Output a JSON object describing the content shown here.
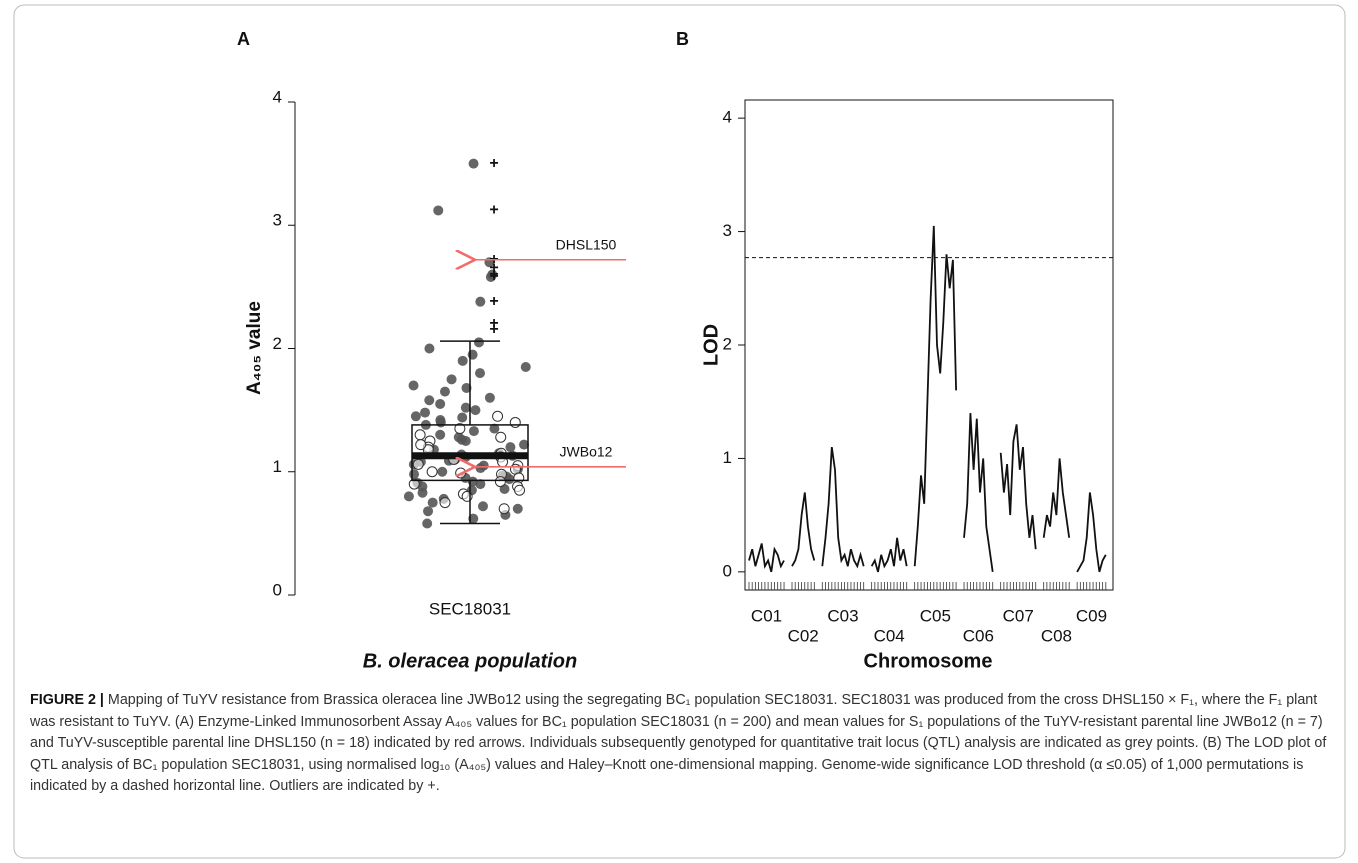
{
  "chart_data": [
    {
      "type": "box",
      "panel_label": "A",
      "ylabel": "A₄₀₅ value",
      "xlabel": "B. oleracea population",
      "categories": [
        "SEC18031"
      ],
      "ylim": [
        0,
        4
      ],
      "yticks": [
        0,
        1,
        2,
        3,
        4
      ],
      "box": {
        "whisker_low": 0.58,
        "q1": 0.93,
        "median": 1.13,
        "q3": 1.38,
        "whisker_high": 2.06
      },
      "outliers": [
        3.5,
        3.12,
        2.72,
        2.65,
        2.6,
        2.58,
        2.38,
        2.2,
        2.15
      ],
      "point_color": "#555555",
      "filled_points": [
        3.5,
        3.12,
        2.7,
        2.6,
        2.58,
        2.38,
        2.05,
        2.0,
        1.95,
        1.9,
        1.85,
        1.8,
        1.75,
        1.7,
        1.68,
        1.65,
        1.6,
        1.58,
        1.55,
        1.52,
        1.5,
        1.48,
        1.45,
        1.42,
        1.4,
        1.38,
        1.35,
        1.33,
        1.3,
        1.28,
        1.25,
        1.22,
        1.2,
        1.18,
        1.15,
        1.14,
        1.12,
        1.1,
        1.08,
        1.06,
        1.05,
        1.03,
        1.02,
        1.0,
        0.98,
        0.97,
        0.95,
        0.94,
        0.92,
        0.9,
        0.88,
        0.86,
        0.85,
        0.83,
        0.8,
        0.78,
        0.75,
        0.72,
        0.7,
        0.68,
        0.65,
        0.62,
        0.58,
        1.13,
        1.11,
        1.09,
        0.96,
        0.91,
        1.26,
        1.44
      ],
      "open_points": [
        1.45,
        1.4,
        1.35,
        1.3,
        1.28,
        1.25,
        1.2,
        1.18,
        1.15,
        1.12,
        1.1,
        1.08,
        1.05,
        1.02,
        1.0,
        0.98,
        0.95,
        0.92,
        0.9,
        0.88,
        0.85,
        0.82,
        0.8,
        0.75,
        0.7,
        1.22,
        1.06,
        0.99
      ],
      "annotations": [
        {
          "text": "DHSL150",
          "value": 2.72,
          "color": "#f26b6b"
        },
        {
          "text": "JWBo12",
          "value": 1.04,
          "color": "#f26b6b"
        }
      ]
    },
    {
      "type": "line",
      "panel_label": "B",
      "ylabel": "LOD",
      "xlabel": "Chromosome",
      "ylim": [
        -0.16,
        4.16
      ],
      "yticks": [
        0,
        1,
        2,
        3,
        4
      ],
      "threshold": 2.77,
      "color": "#111111",
      "series": [
        {
          "name": "C01",
          "values": [
            0.1,
            0.2,
            0.05,
            0.15,
            0.25,
            0.05,
            0.1,
            0.0,
            0.2,
            0.15,
            0.05,
            0.1
          ]
        },
        {
          "name": "C02",
          "values": [
            0.05,
            0.1,
            0.2,
            0.5,
            0.7,
            0.4,
            0.2,
            0.1
          ]
        },
        {
          "name": "C03",
          "values": [
            0.05,
            0.3,
            0.6,
            1.1,
            0.9,
            0.3,
            0.1,
            0.15,
            0.05,
            0.2,
            0.1,
            0.05,
            0.15,
            0.05
          ]
        },
        {
          "name": "C04",
          "values": [
            0.05,
            0.1,
            0.0,
            0.15,
            0.05,
            0.1,
            0.2,
            0.05,
            0.3,
            0.1,
            0.2,
            0.05
          ]
        },
        {
          "name": "C05",
          "values": [
            0.05,
            0.4,
            0.85,
            0.6,
            1.5,
            2.4,
            3.05,
            2.0,
            1.75,
            2.2,
            2.8,
            2.5,
            2.75,
            1.6
          ]
        },
        {
          "name": "C06",
          "values": [
            0.3,
            0.6,
            1.4,
            0.9,
            1.35,
            0.7,
            1.0,
            0.4,
            0.2,
            0.0
          ]
        },
        {
          "name": "C07",
          "values": [
            1.05,
            0.7,
            0.95,
            0.5,
            1.15,
            1.3,
            0.9,
            1.1,
            0.6,
            0.3,
            0.5,
            0.2
          ]
        },
        {
          "name": "C08",
          "values": [
            0.3,
            0.5,
            0.4,
            0.7,
            0.5,
            1.0,
            0.7,
            0.5,
            0.3
          ]
        },
        {
          "name": "C09",
          "values": [
            0.0,
            0.05,
            0.1,
            0.3,
            0.7,
            0.5,
            0.2,
            0.0,
            0.1,
            0.15
          ]
        }
      ]
    }
  ],
  "caption": {
    "label": "FIGURE 2 |",
    "text": "Mapping of TuYV resistance from Brassica oleracea line JWBo12 using the segregating BC₁ population SEC18031. SEC18031 was produced from the cross DHSL150 × F₁, where the F₁ plant was resistant to TuYV. (A) Enzyme-Linked Immunosorbent Assay A₄₀₅ values for BC₁ population SEC18031 (n = 200) and mean values for S₁ populations of the TuYV-resistant parental line JWBo12 (n = 7) and TuYV-susceptible parental line DHSL150 (n = 18) indicated by red arrows. Individuals subsequently genotyped for quantitative trait locus (QTL) analysis are indicated as grey points. (B) The LOD plot of QTL analysis of BC₁ population SEC18031, using normalised log₁₀ (A₄₀₅) values and Haley–Knott one-dimensional mapping. Genome-wide significance LOD threshold (α ≤0.05) of 1,000 permutations is indicated by a dashed horizontal line. Outliers are indicated by +."
  }
}
